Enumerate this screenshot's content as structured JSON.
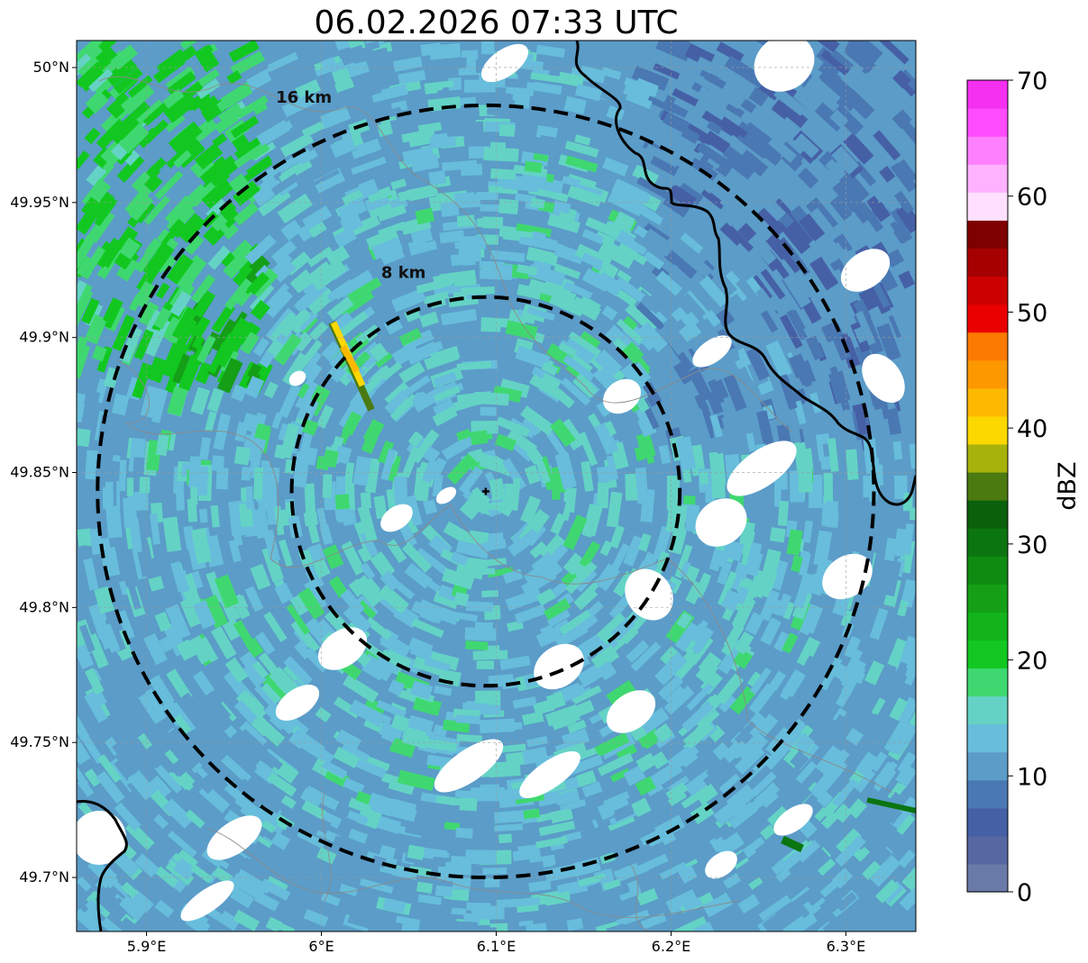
{
  "title": "06.02.2026 07:33 UTC",
  "map": {
    "lon_range": [
      5.86,
      6.34
    ],
    "lat_range": [
      49.68,
      50.01
    ],
    "lon_ticks": [
      {
        "value": 5.9,
        "label": "5.9°E"
      },
      {
        "value": 6.0,
        "label": "6°E"
      },
      {
        "value": 6.1,
        "label": "6.1°E"
      },
      {
        "value": 6.2,
        "label": "6.2°E"
      },
      {
        "value": 6.3,
        "label": "6.3°E"
      }
    ],
    "lat_ticks": [
      {
        "value": 50.0,
        "label": "50°N"
      },
      {
        "value": 49.95,
        "label": "49.95°N"
      },
      {
        "value": 49.9,
        "label": "49.9°N"
      },
      {
        "value": 49.85,
        "label": "49.85°N"
      },
      {
        "value": 49.8,
        "label": "49.8°N"
      },
      {
        "value": 49.75,
        "label": "49.75°N"
      },
      {
        "value": 49.7,
        "label": "49.7°N"
      }
    ],
    "radar_site": {
      "lon": 6.094,
      "lat": 49.843
    },
    "range_rings": [
      {
        "label": "8 km",
        "lon_radius": 0.111,
        "lat_radius": 0.072,
        "label_lon": 6.047,
        "label_lat": 49.922
      },
      {
        "label": "16 km",
        "lon_radius": 0.222,
        "lat_radius": 0.143,
        "label_lon": 5.99,
        "label_lat": 49.987
      }
    ],
    "border_colors": {
      "country": "#000000",
      "admin": "#888888",
      "ring": "#000000"
    }
  },
  "colorbar": {
    "label": "dBZ",
    "vmin": 0,
    "vmax": 70,
    "ticks": [
      0,
      10,
      20,
      30,
      40,
      50,
      60,
      70
    ],
    "colors": [
      "#6a7aa8",
      "#5767a2",
      "#4660a6",
      "#4a78b3",
      "#5b9cc8",
      "#67bddb",
      "#64d3c5",
      "#3fd870",
      "#12c820",
      "#12b31b",
      "#149f17",
      "#0f8b12",
      "#0b7510",
      "#0b600c",
      "#4a7a10",
      "#a8b20d",
      "#fdd700",
      "#fdb800",
      "#fd9800",
      "#fd7a00",
      "#ea0000",
      "#cc0000",
      "#a60000",
      "#7e0000",
      "#ffe0ff",
      "#ffb2ff",
      "#ff80ff",
      "#ff4cff",
      "#f530f0"
    ]
  }
}
